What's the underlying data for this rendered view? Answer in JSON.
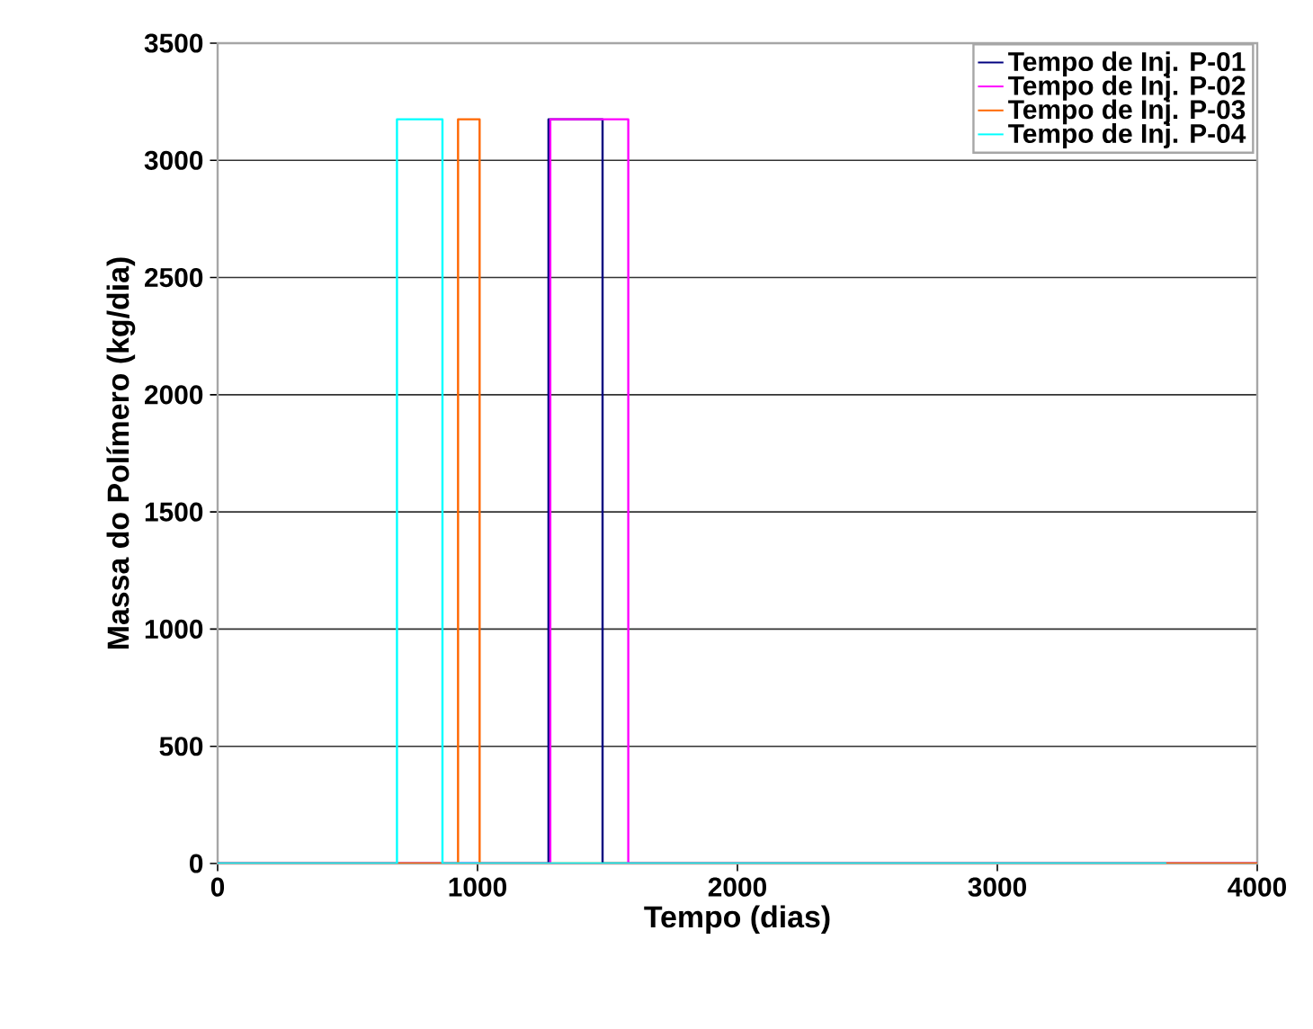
{
  "chart_data": {
    "type": "line",
    "xlabel": "Tempo (dias)",
    "ylabel": "Massa do Polímero (kg/dia)",
    "xlim": [
      0,
      4000
    ],
    "ylim": [
      0,
      3500
    ],
    "xticks": [
      0,
      1000,
      2000,
      3000,
      4000
    ],
    "yticks": [
      0,
      500,
      1000,
      1500,
      2000,
      2500,
      3000,
      3500
    ],
    "grid": "y",
    "legend": "top right",
    "marker": "none",
    "line_style": "solid",
    "series": [
      {
        "name": "Tempo de Inj. P-01",
        "color": "#000080",
        "x": [
          0,
          1273,
          1273,
          1481,
          1481,
          4000
        ],
        "values": [
          0,
          0,
          3175,
          3175,
          0,
          0
        ]
      },
      {
        "name": "Tempo de Inj. P-02",
        "color": "#ff00ff",
        "x": [
          0,
          1280,
          1280,
          1580,
          1580,
          4000
        ],
        "values": [
          0,
          0,
          3175,
          3175,
          0,
          0
        ]
      },
      {
        "name": "Tempo de Inj. P-03",
        "color": "#ff6600",
        "x": [
          0,
          925,
          925,
          1008,
          1008,
          4000
        ],
        "values": [
          0,
          0,
          3175,
          3175,
          0,
          0
        ]
      },
      {
        "name": "Tempo de Inj. P-04",
        "color": "#00ffff",
        "x": [
          0,
          690,
          690,
          865,
          865,
          3650
        ],
        "values": [
          0,
          0,
          3175,
          3175,
          0,
          0
        ]
      }
    ]
  }
}
